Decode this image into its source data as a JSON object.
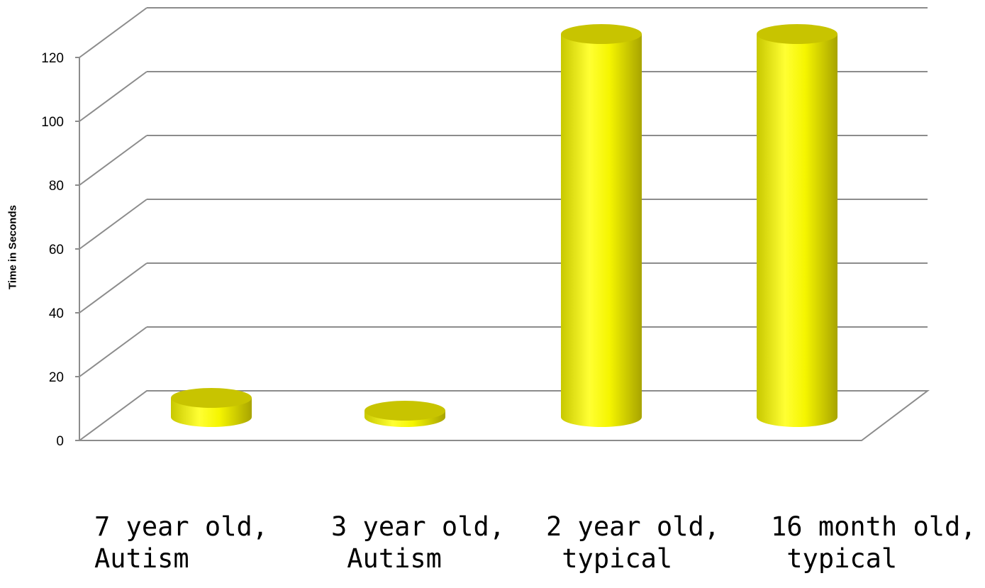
{
  "chart_data": {
    "type": "bar",
    "style": "3d-cylinder",
    "title": "",
    "xlabel": "",
    "ylabel": "Time in Seconds",
    "ylim": [
      0,
      120
    ],
    "yticks": [
      "0",
      "20",
      "40",
      "60",
      "80",
      "100",
      "120"
    ],
    "grid": true,
    "legend": "none",
    "categories": [
      {
        "line1": "7 year old,",
        "line2": "Autism"
      },
      {
        "line1": "3 year old,",
        "line2": " Autism"
      },
      {
        "line1": "2 year old,",
        "line2": " typical"
      },
      {
        "line1": "16 month old,",
        "line2": " typical"
      }
    ],
    "values": [
      6,
      2,
      120,
      120
    ],
    "colors": {
      "bar_light": "#ffff33",
      "bar_dark": "#b8b800",
      "bar_top": "#c8c400",
      "grid": "#8c8c8c"
    }
  }
}
